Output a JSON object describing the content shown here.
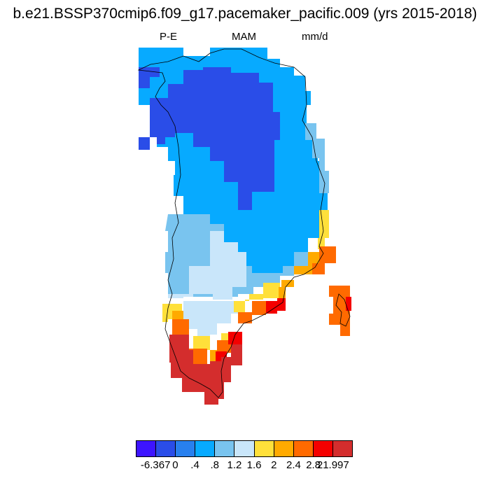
{
  "header": {
    "title": "b.e21.BSSP370cmip6.f09_g17.pacemaker_pacific.009 (yrs 2015-2018)",
    "left_label": "P-E",
    "center_label": "MAM",
    "right_label": "mm/d"
  },
  "colorbar": {
    "colors": [
      "#3d14ff",
      "#2a4de8",
      "#2880ee",
      "#07aaff",
      "#79c4ef",
      "#c9e6fa",
      "#ffe03a",
      "#ffaa00",
      "#ff6a00",
      "#f40000",
      "#d42d2d"
    ],
    "labels": [
      "-6.367",
      "0",
      ".4",
      ".8",
      "1.2",
      "1.6",
      "2",
      "2.4",
      "2.8",
      "21.997"
    ]
  }
}
